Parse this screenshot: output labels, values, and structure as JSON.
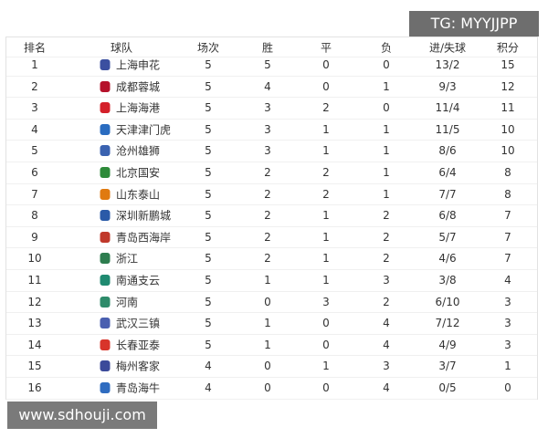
{
  "table": {
    "header": [
      "排名",
      "球队",
      "场次",
      "胜",
      "平",
      "负",
      "进/失球",
      "积分"
    ],
    "rows": [
      [
        1,
        "上海申花",
        5,
        5,
        0,
        0,
        "13/2",
        15
      ],
      [
        2,
        "成都蓉城",
        5,
        4,
        0,
        1,
        "9/3",
        12
      ],
      [
        3,
        "上海海港",
        5,
        3,
        2,
        0,
        "11/4",
        11
      ],
      [
        4,
        "天津津门虎",
        5,
        3,
        1,
        1,
        "11/5",
        10
      ],
      [
        5,
        "沧州雄狮",
        5,
        3,
        1,
        1,
        "8/6",
        10
      ],
      [
        6,
        "北京国安",
        5,
        2,
        2,
        1,
        "6/4",
        8
      ],
      [
        7,
        "山东泰山",
        5,
        2,
        2,
        1,
        "7/7",
        8
      ],
      [
        8,
        "深圳新鹏城",
        5,
        2,
        1,
        2,
        "6/8",
        7
      ],
      [
        9,
        "青岛西海岸",
        5,
        2,
        1,
        2,
        "5/7",
        7
      ],
      [
        10,
        "浙江",
        5,
        2,
        1,
        2,
        "4/6",
        7
      ],
      [
        11,
        "南通支云",
        5,
        1,
        1,
        3,
        "3/8",
        4
      ],
      [
        12,
        "河南",
        5,
        0,
        3,
        2,
        "6/10",
        3
      ],
      [
        13,
        "武汉三镇",
        5,
        1,
        0,
        4,
        "7/12",
        3
      ],
      [
        14,
        "长春亚泰",
        5,
        1,
        0,
        4,
        "4/9",
        3
      ],
      [
        15,
        "梅州客家",
        4,
        0,
        1,
        3,
        "3/7",
        1
      ],
      [
        16,
        "青岛海牛",
        4,
        0,
        0,
        4,
        "0/5",
        0
      ]
    ]
  },
  "watermark_top": "TG: MYYJJPP",
  "watermark_bottom": "www.sdhouji.com"
}
